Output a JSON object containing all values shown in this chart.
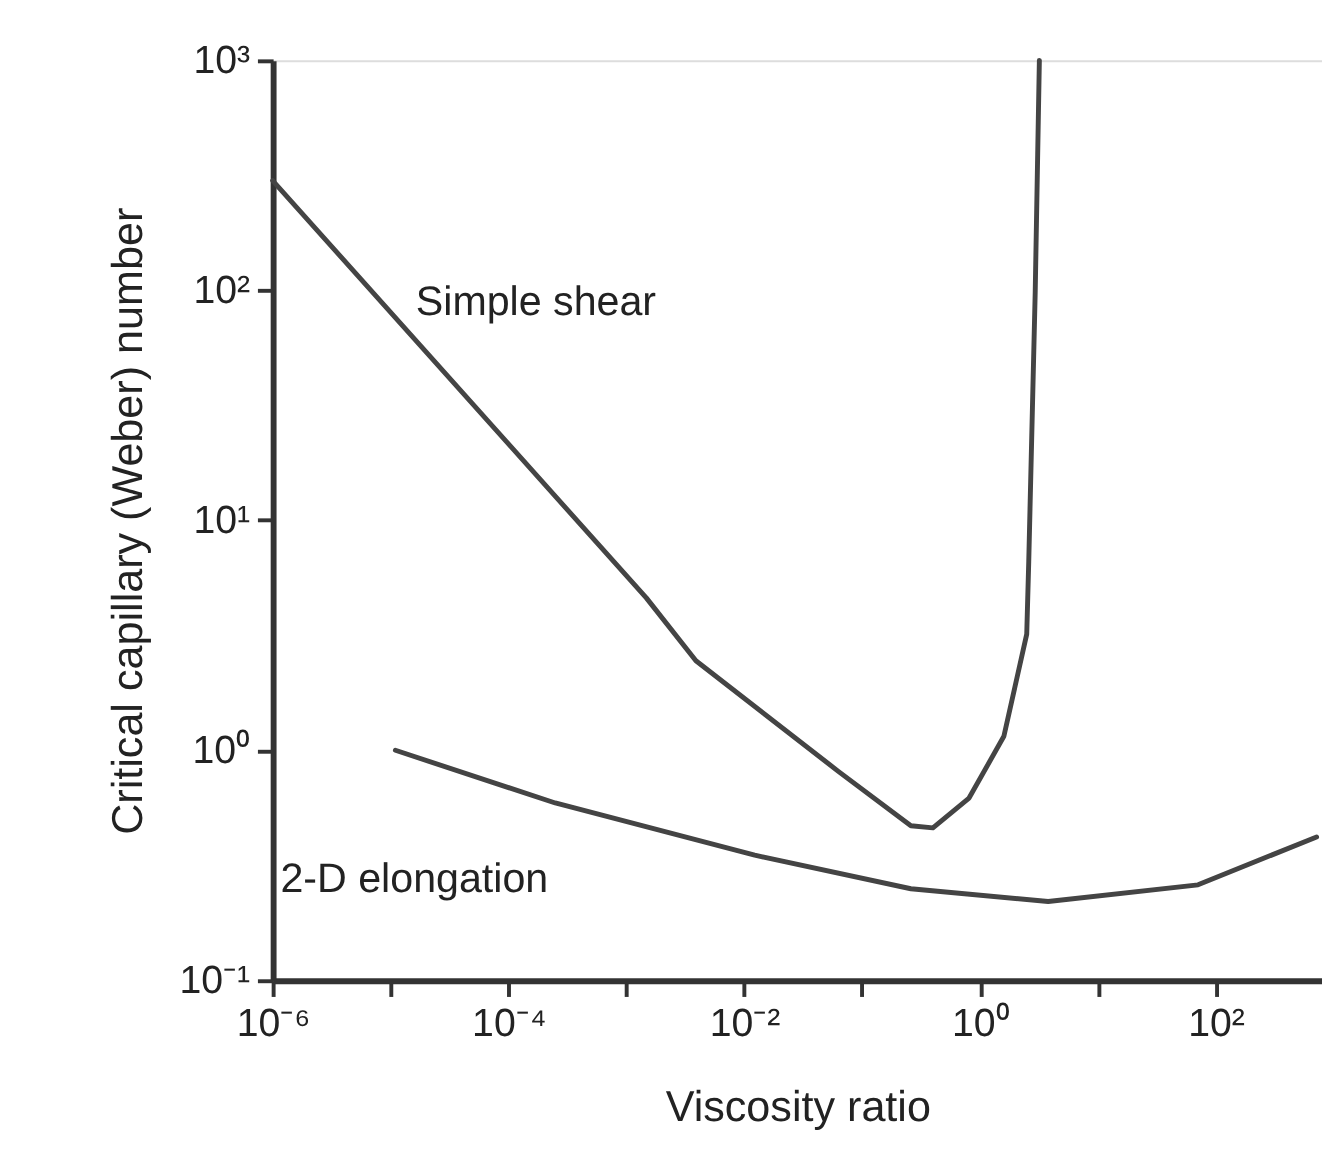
{
  "chart_data": {
    "type": "line",
    "xlabel": "Viscosity ratio",
    "ylabel": "Critical capillary (Weber) number",
    "log": "xy",
    "grid": false,
    "marker": "none",
    "line_style": "solid",
    "xlim": [
      1e-06,
      800
    ],
    "ylim": [
      0.1,
      1000
    ],
    "xticks": [
      {
        "value": 1e-06,
        "label": "10⁻⁶"
      },
      {
        "value": 1e-05,
        "label": null
      },
      {
        "value": 0.0001,
        "label": "10⁻⁴"
      },
      {
        "value": 0.001,
        "label": null
      },
      {
        "value": 0.01,
        "label": "10⁻²"
      },
      {
        "value": 0.1,
        "label": null
      },
      {
        "value": 1,
        "label": "10⁰"
      },
      {
        "value": 10,
        "label": null
      },
      {
        "value": 100,
        "label": "10²"
      }
    ],
    "yticks": [
      {
        "value": 0.1,
        "label": "10⁻¹"
      },
      {
        "value": 1,
        "label": "10⁰"
      },
      {
        "value": 10,
        "label": "10¹"
      },
      {
        "value": 100,
        "label": "10²"
      },
      {
        "value": 1000,
        "label": "10³"
      }
    ],
    "series": [
      {
        "color": "#444444",
        "x": [
          1e-06,
          0.00148,
          0.0039,
          0.063,
          0.26,
          0.4,
          0.81,
          1.6,
          2.5,
          2.6,
          2.95,
          3.2
        ],
        "values": [
          300,
          4.6,
          2.45,
          0.81,
          0.47,
          0.46,
          0.62,
          1.15,
          3.2,
          6.6,
          98,
          1000
        ]
      },
      {
        "color": "#444444",
        "x": [
          1.1e-05,
          0.00025,
          0.0123,
          0.26,
          3.8,
          71,
          720
        ],
        "values": [
          1.0,
          0.59,
          0.35,
          0.25,
          0.22,
          0.26,
          0.42
        ]
      }
    ],
    "annotations": [
      "Simple shear",
      "2-D elongation"
    ]
  }
}
